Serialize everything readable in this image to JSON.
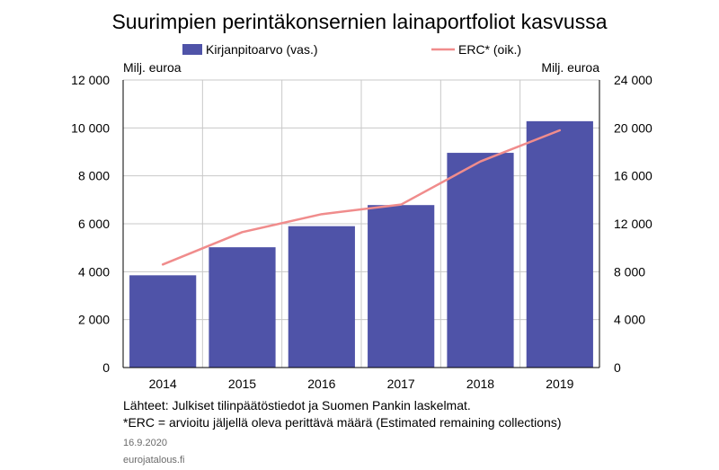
{
  "chart_data": {
    "type": "bar",
    "title": "Suurimpien perintäkonsernien lainaportfoliot kasvussa",
    "categories": [
      "2014",
      "2015",
      "2016",
      "2017",
      "2018",
      "2019"
    ],
    "series": [
      {
        "name": "Kirjanpitoarvo (vas.)",
        "type": "bar",
        "axis": "left",
        "color": "#4F53A8",
        "values": [
          3850,
          5020,
          5900,
          6780,
          8960,
          10280
        ]
      },
      {
        "name": "ERC* (oik.)",
        "type": "line",
        "axis": "right",
        "color": "#F08C8C",
        "values": [
          8600,
          11300,
          12800,
          13600,
          17200,
          19800
        ]
      }
    ],
    "y_left": {
      "label": "Milj. euroa",
      "range": [
        0,
        12000
      ],
      "ticks": [
        0,
        2000,
        4000,
        6000,
        8000,
        10000,
        12000
      ],
      "tick_labels": [
        "0",
        "2 000",
        "4 000",
        "6 000",
        "8 000",
        "10 000",
        "12 000"
      ]
    },
    "y_right": {
      "label": "Milj. euroa",
      "range": [
        0,
        24000
      ],
      "ticks": [
        0,
        4000,
        8000,
        12000,
        16000,
        20000,
        24000
      ],
      "tick_labels": [
        "0",
        "4 000",
        "8 000",
        "12 000",
        "16 000",
        "20 000",
        "24 000"
      ]
    },
    "grid": true,
    "legend_position": "top"
  },
  "footnotes": {
    "source": "Lähteet: Julkiset tilinpäätöstiedot ja Suomen Pankin laskelmat.",
    "erc_note": "*ERC = arvioitu jäljellä  oleva perittävä määrä (Estimated remaining collections)",
    "date": "16.9.2020",
    "site": "eurojatalous.fi"
  }
}
